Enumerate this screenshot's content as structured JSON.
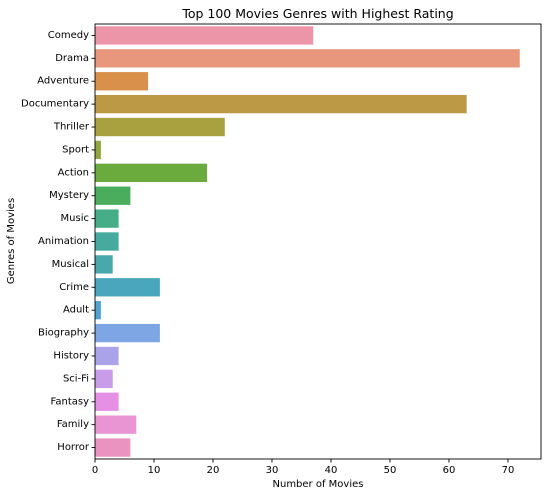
{
  "chart_data": {
    "type": "bar",
    "orientation": "horizontal",
    "title": "Top 100 Movies Genres with Highest Rating",
    "xlabel": "Number of Movies",
    "ylabel": "Genres of Movies",
    "xlim": [
      0,
      75.6
    ],
    "xticks": [
      0,
      10,
      20,
      30,
      40,
      50,
      60,
      70
    ],
    "grid": false,
    "legend": "none",
    "categories": [
      "Comedy",
      "Drama",
      "Adventure",
      "Documentary",
      "Thriller",
      "Sport",
      "Action",
      "Mystery",
      "Music",
      "Animation",
      "Musical",
      "Crime",
      "Adult",
      "Biography",
      "History",
      "Sci-Fi",
      "Fantasy",
      "Family",
      "Horror"
    ],
    "values": [
      37,
      72,
      9,
      63,
      22,
      1,
      19,
      6,
      4,
      4,
      3,
      11,
      1,
      11,
      4,
      3,
      4,
      7,
      6
    ],
    "colors": [
      "#ec95a8",
      "#e9977c",
      "#d9904a",
      "#bc9a45",
      "#a9a13f",
      "#93a63e",
      "#6bab3e",
      "#4aad5e",
      "#46ad89",
      "#47aa9e",
      "#49a8ac",
      "#4aa6bc",
      "#50a3d0",
      "#7ea6e5",
      "#aaa3ea",
      "#c99ce9",
      "#e590e4",
      "#e995d3",
      "#ea93c0"
    ]
  }
}
